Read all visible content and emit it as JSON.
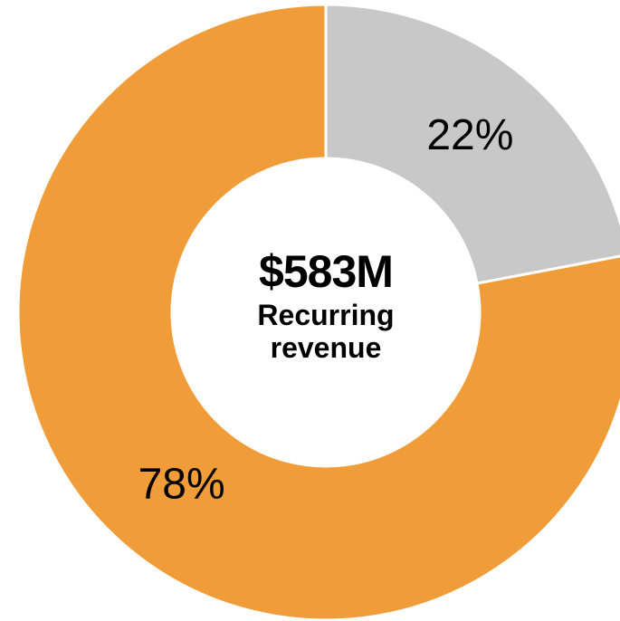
{
  "chart_data": {
    "type": "donut",
    "values": [
      22,
      78
    ],
    "value_labels": [
      "22%",
      "78%"
    ],
    "colors": [
      "#c8c8c8",
      "#f09c38"
    ],
    "center_value": "$583M",
    "center_label": "Recurring revenue"
  }
}
